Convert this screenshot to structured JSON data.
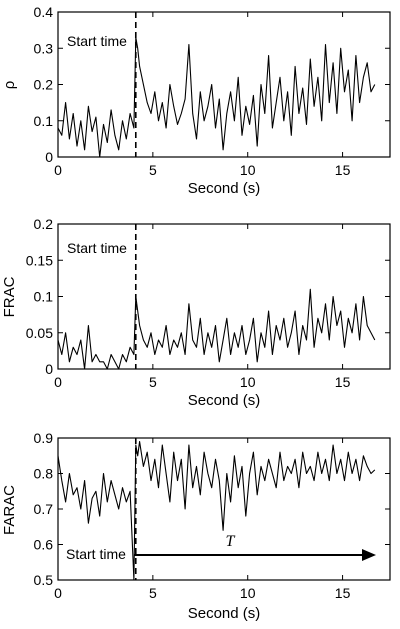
{
  "chart_data": [
    {
      "type": "line",
      "ylabel": "ρ",
      "xlabel": "Second (s)",
      "xlim": [
        0,
        17.5
      ],
      "ylim": [
        0,
        0.4
      ],
      "xticks": [
        0,
        5,
        10,
        15
      ],
      "yticks": [
        0,
        0.1,
        0.2,
        0.3,
        0.4
      ],
      "xtick_labels": [
        "0",
        "5",
        "10",
        "15"
      ],
      "ytick_labels": [
        "0",
        "0.1",
        "0.2",
        "0.3",
        "0.4"
      ],
      "annotation": "Start time",
      "start_time": 4.1,
      "series": [
        {
          "x": [
            0.0,
            0.2,
            0.4,
            0.6,
            0.8,
            1.0,
            1.2,
            1.4,
            1.6,
            1.8,
            2.0,
            2.2,
            2.4,
            2.6,
            2.8,
            3.0,
            3.2,
            3.4,
            3.6,
            3.8,
            4.0,
            4.1,
            4.2,
            4.3,
            4.5,
            4.7,
            4.9,
            5.1,
            5.3,
            5.5,
            5.7,
            5.9,
            6.1,
            6.3,
            6.5,
            6.7,
            6.9,
            7.1,
            7.3,
            7.5,
            7.7,
            7.9,
            8.1,
            8.3,
            8.5,
            8.7,
            8.9,
            9.1,
            9.3,
            9.5,
            9.7,
            9.9,
            10.1,
            10.3,
            10.5,
            10.7,
            10.9,
            11.1,
            11.3,
            11.5,
            11.7,
            11.9,
            12.1,
            12.3,
            12.5,
            12.7,
            12.9,
            13.1,
            13.3,
            13.5,
            13.7,
            13.9,
            14.1,
            14.3,
            14.5,
            14.7,
            14.9,
            15.1,
            15.3,
            15.5,
            15.7,
            15.9,
            16.1,
            16.3,
            16.5,
            16.7
          ],
          "y": [
            0.08,
            0.06,
            0.15,
            0.05,
            0.12,
            0.03,
            0.1,
            0.02,
            0.14,
            0.07,
            0.11,
            0.0,
            0.09,
            0.04,
            0.13,
            0.06,
            0.02,
            0.1,
            0.05,
            0.12,
            0.08,
            0.33,
            0.3,
            0.25,
            0.2,
            0.15,
            0.12,
            0.18,
            0.1,
            0.15,
            0.08,
            0.2,
            0.14,
            0.09,
            0.12,
            0.16,
            0.31,
            0.12,
            0.05,
            0.18,
            0.1,
            0.14,
            0.2,
            0.08,
            0.16,
            0.02,
            0.12,
            0.18,
            0.1,
            0.22,
            0.06,
            0.14,
            0.09,
            0.17,
            0.03,
            0.2,
            0.12,
            0.28,
            0.08,
            0.15,
            0.22,
            0.1,
            0.18,
            0.06,
            0.25,
            0.12,
            0.19,
            0.09,
            0.27,
            0.14,
            0.22,
            0.1,
            0.31,
            0.15,
            0.26,
            0.12,
            0.3,
            0.18,
            0.24,
            0.1,
            0.28,
            0.15,
            0.22,
            0.26,
            0.18,
            0.2
          ]
        }
      ]
    },
    {
      "type": "line",
      "ylabel": "FRAC",
      "xlabel": "Second (s)",
      "xlim": [
        0,
        17.5
      ],
      "ylim": [
        0,
        0.2
      ],
      "xticks": [
        0,
        5,
        10,
        15
      ],
      "yticks": [
        0,
        0.05,
        0.1,
        0.15,
        0.2
      ],
      "xtick_labels": [
        "0",
        "5",
        "10",
        "15"
      ],
      "ytick_labels": [
        "0",
        "0.05",
        "0.1",
        "0.15",
        "0.2"
      ],
      "annotation": "Start time",
      "start_time": 4.1,
      "series": [
        {
          "x": [
            0.0,
            0.2,
            0.4,
            0.6,
            0.8,
            1.0,
            1.2,
            1.4,
            1.6,
            1.8,
            2.0,
            2.2,
            2.4,
            2.6,
            2.8,
            3.0,
            3.2,
            3.4,
            3.6,
            3.8,
            4.0,
            4.1,
            4.2,
            4.3,
            4.5,
            4.7,
            4.9,
            5.1,
            5.3,
            5.5,
            5.7,
            5.9,
            6.1,
            6.3,
            6.5,
            6.7,
            6.9,
            7.1,
            7.3,
            7.5,
            7.7,
            7.9,
            8.1,
            8.3,
            8.5,
            8.7,
            8.9,
            9.1,
            9.3,
            9.5,
            9.7,
            9.9,
            10.1,
            10.3,
            10.5,
            10.7,
            10.9,
            11.1,
            11.3,
            11.5,
            11.7,
            11.9,
            12.1,
            12.3,
            12.5,
            12.7,
            12.9,
            13.1,
            13.3,
            13.5,
            13.7,
            13.9,
            14.1,
            14.3,
            14.5,
            14.7,
            14.9,
            15.1,
            15.3,
            15.5,
            15.7,
            15.9,
            16.1,
            16.3,
            16.5,
            16.7
          ],
          "y": [
            0.04,
            0.02,
            0.05,
            0.01,
            0.03,
            0.02,
            0.04,
            0.0,
            0.06,
            0.01,
            0.02,
            0.01,
            0.01,
            0.0,
            0.02,
            0.01,
            0.0,
            0.02,
            0.01,
            0.03,
            0.02,
            0.1,
            0.08,
            0.06,
            0.04,
            0.03,
            0.05,
            0.02,
            0.04,
            0.03,
            0.06,
            0.02,
            0.04,
            0.03,
            0.05,
            0.02,
            0.09,
            0.04,
            0.03,
            0.07,
            0.02,
            0.05,
            0.03,
            0.06,
            0.01,
            0.04,
            0.07,
            0.02,
            0.05,
            0.03,
            0.06,
            0.02,
            0.04,
            0.07,
            0.01,
            0.05,
            0.03,
            0.08,
            0.02,
            0.06,
            0.04,
            0.07,
            0.03,
            0.05,
            0.08,
            0.02,
            0.06,
            0.04,
            0.11,
            0.03,
            0.07,
            0.05,
            0.09,
            0.04,
            0.1,
            0.06,
            0.08,
            0.03,
            0.07,
            0.05,
            0.09,
            0.04,
            0.1,
            0.06,
            0.05,
            0.04
          ]
        }
      ]
    },
    {
      "type": "line",
      "ylabel": "FARAC",
      "xlabel": "Second (s)",
      "xlim": [
        0,
        17.5
      ],
      "ylim": [
        0.5,
        0.9
      ],
      "xticks": [
        0,
        5,
        10,
        15
      ],
      "yticks": [
        0.5,
        0.6,
        0.7,
        0.8,
        0.9
      ],
      "xtick_labels": [
        "0",
        "5",
        "10",
        "15"
      ],
      "ytick_labels": [
        "0.5",
        "0.6",
        "0.7",
        "0.8",
        "0.9"
      ],
      "annotation": "Start time",
      "arrow_label": "T",
      "start_time": 4.1,
      "series": [
        {
          "x": [
            0.0,
            0.2,
            0.4,
            0.6,
            0.8,
            1.0,
            1.2,
            1.4,
            1.6,
            1.8,
            2.0,
            2.2,
            2.4,
            2.6,
            2.8,
            3.0,
            3.2,
            3.4,
            3.6,
            3.8,
            4.0,
            4.1,
            4.2,
            4.3,
            4.5,
            4.7,
            4.9,
            5.1,
            5.3,
            5.5,
            5.7,
            5.9,
            6.1,
            6.3,
            6.5,
            6.7,
            6.9,
            7.1,
            7.3,
            7.5,
            7.7,
            7.9,
            8.1,
            8.3,
            8.5,
            8.7,
            8.9,
            9.1,
            9.3,
            9.5,
            9.7,
            9.9,
            10.1,
            10.3,
            10.5,
            10.7,
            10.9,
            11.1,
            11.3,
            11.5,
            11.7,
            11.9,
            12.1,
            12.3,
            12.5,
            12.7,
            12.9,
            13.1,
            13.3,
            13.5,
            13.7,
            13.9,
            14.1,
            14.3,
            14.5,
            14.7,
            14.9,
            15.1,
            15.3,
            15.5,
            15.7,
            15.9,
            16.1,
            16.3,
            16.5,
            16.7
          ],
          "y": [
            0.85,
            0.78,
            0.72,
            0.8,
            0.74,
            0.76,
            0.7,
            0.78,
            0.66,
            0.73,
            0.75,
            0.68,
            0.8,
            0.72,
            0.78,
            0.74,
            0.7,
            0.76,
            0.72,
            0.75,
            0.5,
            0.88,
            0.85,
            0.89,
            0.82,
            0.86,
            0.78,
            0.84,
            0.76,
            0.88,
            0.8,
            0.72,
            0.86,
            0.78,
            0.84,
            0.7,
            0.88,
            0.76,
            0.82,
            0.74,
            0.86,
            0.8,
            0.76,
            0.84,
            0.78,
            0.64,
            0.8,
            0.72,
            0.85,
            0.76,
            0.82,
            0.68,
            0.8,
            0.86,
            0.74,
            0.82,
            0.78,
            0.84,
            0.8,
            0.76,
            0.86,
            0.78,
            0.82,
            0.8,
            0.84,
            0.76,
            0.86,
            0.8,
            0.82,
            0.78,
            0.86,
            0.8,
            0.84,
            0.78,
            0.88,
            0.8,
            0.84,
            0.78,
            0.86,
            0.8,
            0.84,
            0.78,
            0.85,
            0.82,
            0.8,
            0.81
          ]
        }
      ]
    }
  ]
}
